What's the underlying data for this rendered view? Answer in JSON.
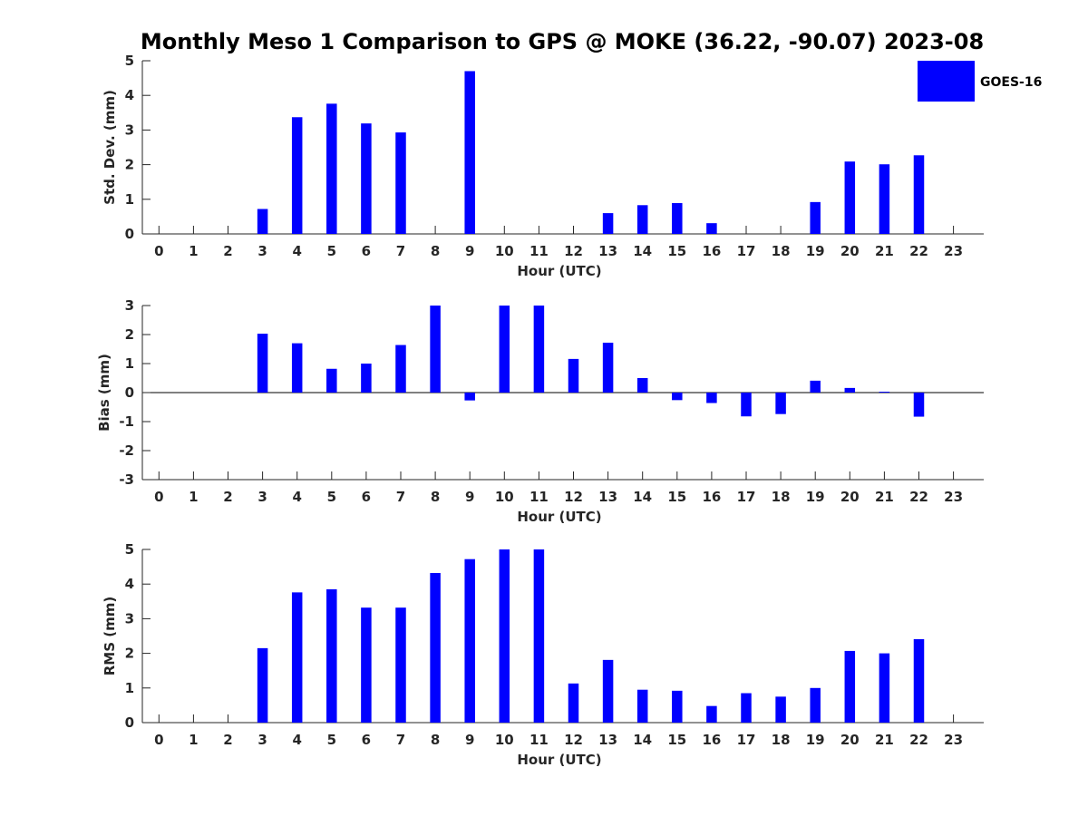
{
  "title": "Monthly Meso 1 Comparison to GPS @ MOKE (36.22, -90.07) 2023-08",
  "colors": {
    "bar": "#0000ff",
    "axis": "#262626",
    "background": "#ffffff"
  },
  "legend": {
    "label": "GOES-16",
    "placement": "top-right"
  },
  "chart_data": [
    {
      "type": "bar",
      "ylabel": "Std. Dev. (mm)",
      "xlabel": "Hour (UTC)",
      "ylim": [
        0,
        5
      ],
      "yticks": [
        "0",
        "1",
        "2",
        "3",
        "4",
        "5"
      ],
      "categories": [
        "0",
        "1",
        "2",
        "3",
        "4",
        "5",
        "6",
        "7",
        "8",
        "9",
        "10",
        "11",
        "12",
        "13",
        "14",
        "15",
        "16",
        "17",
        "18",
        "19",
        "20",
        "21",
        "22",
        "23"
      ],
      "series": [
        {
          "name": "GOES-16",
          "values": [
            null,
            null,
            null,
            0.72,
            3.37,
            3.76,
            3.19,
            2.93,
            null,
            4.7,
            null,
            null,
            null,
            0.6,
            0.83,
            0.89,
            0.31,
            null,
            null,
            0.92,
            2.09,
            2.01,
            2.27,
            null
          ]
        }
      ]
    },
    {
      "type": "bar",
      "ylabel": "Bias (mm)",
      "xlabel": "Hour (UTC)",
      "ylim": [
        -3,
        3
      ],
      "yticks": [
        "-3",
        "-2",
        "-1",
        "0",
        "1",
        "2",
        "3"
      ],
      "categories": [
        "0",
        "1",
        "2",
        "3",
        "4",
        "5",
        "6",
        "7",
        "8",
        "9",
        "10",
        "11",
        "12",
        "13",
        "14",
        "15",
        "16",
        "17",
        "18",
        "19",
        "20",
        "21",
        "22",
        "23"
      ],
      "series": [
        {
          "name": "GOES-16",
          "values": [
            null,
            null,
            null,
            2.03,
            1.7,
            0.82,
            1.0,
            1.64,
            3.0,
            -0.27,
            3.0,
            3.0,
            1.16,
            1.72,
            0.5,
            -0.26,
            -0.36,
            -0.82,
            -0.74,
            0.41,
            0.16,
            0.03,
            -0.83,
            null
          ]
        }
      ]
    },
    {
      "type": "bar",
      "ylabel": "RMS (mm)",
      "xlabel": "Hour (UTC)",
      "ylim": [
        0,
        5
      ],
      "yticks": [
        "0",
        "1",
        "2",
        "3",
        "4",
        "5"
      ],
      "categories": [
        "0",
        "1",
        "2",
        "3",
        "4",
        "5",
        "6",
        "7",
        "8",
        "9",
        "10",
        "11",
        "12",
        "13",
        "14",
        "15",
        "16",
        "17",
        "18",
        "19",
        "20",
        "21",
        "22",
        "23"
      ],
      "series": [
        {
          "name": "GOES-16",
          "values": [
            null,
            null,
            null,
            2.15,
            3.76,
            3.85,
            3.32,
            3.32,
            4.32,
            4.72,
            5.0,
            5.0,
            1.13,
            1.81,
            0.95,
            0.92,
            0.48,
            0.85,
            0.75,
            1.0,
            2.07,
            2.0,
            2.41,
            null
          ]
        }
      ]
    }
  ]
}
